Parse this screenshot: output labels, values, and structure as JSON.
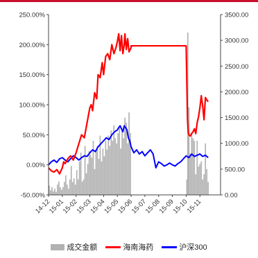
{
  "chart_data": {
    "type": "line",
    "title": "",
    "xlabel": "",
    "ylabel_left": "",
    "ylabel_right": "",
    "left_axis": {
      "ticks": [
        "250.00%",
        "200.00%",
        "150.00%",
        "100.00%",
        "50.00%",
        "0.00%",
        "-50.00%"
      ],
      "min": -50,
      "max": 250,
      "step": 50,
      "unit": "%"
    },
    "right_axis": {
      "ticks": [
        "3500.00",
        "3000.00",
        "2500.00",
        "2000.00",
        "1500.00",
        "1000.00",
        "500.00",
        "0.00"
      ],
      "min": 0,
      "max": 3500,
      "step": 500
    },
    "x_axis": {
      "min": 0,
      "max": 12.5,
      "ticks": [
        {
          "label": "14-12",
          "x": 0
        },
        {
          "label": "15-01",
          "x": 1
        },
        {
          "label": "15-02",
          "x": 2
        },
        {
          "label": "15-03",
          "x": 3
        },
        {
          "label": "15-04",
          "x": 4
        },
        {
          "label": "15-05",
          "x": 5
        },
        {
          "label": "15-06",
          "x": 6
        },
        {
          "label": "15-07",
          "x": 7
        },
        {
          "label": "15-08",
          "x": 8
        },
        {
          "label": "15-09",
          "x": 9
        },
        {
          "label": "15-10",
          "x": 10
        },
        {
          "label": "15-11",
          "x": 11
        }
      ]
    },
    "grid": false,
    "legend_position": "bottom",
    "series": [
      {
        "name": "成交金额",
        "type": "bar",
        "axis": "right",
        "color": "#b2b2b2",
        "x": [
          0.05,
          0.15,
          0.25,
          0.35,
          0.45,
          0.55,
          0.65,
          0.75,
          0.85,
          0.95,
          1.05,
          1.15,
          1.25,
          1.35,
          1.45,
          1.55,
          1.65,
          1.75,
          1.85,
          1.95,
          2.05,
          2.15,
          2.25,
          2.35,
          2.45,
          2.55,
          2.65,
          2.75,
          2.85,
          2.95,
          3.05,
          3.15,
          3.25,
          3.35,
          3.45,
          3.55,
          3.65,
          3.75,
          3.85,
          3.95,
          4.05,
          4.15,
          4.25,
          4.35,
          4.45,
          4.55,
          4.65,
          4.75,
          4.85,
          4.95,
          5.05,
          5.15,
          5.25,
          5.35,
          5.45,
          5.55,
          5.65,
          5.75,
          5.85,
          5.95,
          10.05,
          10.12,
          10.2,
          10.3,
          10.4,
          10.5,
          10.6,
          10.7,
          10.8,
          10.9,
          11.0,
          11.1,
          11.2,
          11.3,
          11.4,
          11.5,
          11.6
        ],
        "values": [
          180,
          90,
          150,
          70,
          120,
          60,
          200,
          260,
          150,
          100,
          150,
          250,
          380,
          200,
          120,
          300,
          560,
          250,
          320,
          200,
          480,
          300,
          650,
          820,
          260,
          300,
          950,
          420,
          600,
          850,
          780,
          720,
          1050,
          500,
          850,
          950,
          700,
          1150,
          650,
          900,
          750,
          1050,
          880,
          1150,
          950,
          1250,
          1050,
          1350,
          1100,
          1000,
          1200,
          1300,
          900,
          1250,
          1100,
          1500,
          1400,
          1000,
          1600,
          1200,
          300,
          3150,
          1700,
          800,
          1200,
          1100,
          1050,
          400,
          1050,
          550,
          600,
          650,
          300,
          400,
          1000,
          500,
          250
        ]
      },
      {
        "name": "海南海药",
        "type": "line",
        "axis": "left",
        "color": "#ff0000",
        "x": [
          0,
          0.2,
          0.4,
          0.6,
          0.8,
          1.0,
          1.1,
          1.2,
          1.4,
          1.6,
          1.8,
          2.0,
          2.2,
          2.4,
          2.6,
          2.8,
          3.0,
          3.1,
          3.2,
          3.35,
          3.5,
          3.6,
          3.75,
          3.9,
          4.0,
          4.15,
          4.3,
          4.45,
          4.6,
          4.75,
          4.9,
          5.0,
          5.1,
          5.2,
          5.3,
          5.4,
          5.5,
          5.55,
          5.65,
          5.75,
          5.85,
          6.0,
          6.0,
          7.0,
          8.0,
          9.0,
          10.0,
          10.1,
          10.15,
          10.2,
          10.3,
          10.4,
          10.5,
          10.6,
          10.7,
          10.8,
          10.9,
          11.0,
          11.1,
          11.2,
          11.3,
          11.4,
          11.5,
          11.6
        ],
        "values": [
          -5,
          -10,
          -12,
          -8,
          -15,
          -5,
          5,
          2,
          10,
          15,
          8,
          20,
          35,
          50,
          45,
          70,
          95,
          100,
          90,
          120,
          110,
          150,
          145,
          170,
          150,
          180,
          185,
          175,
          200,
          185,
          195,
          205,
          218,
          190,
          215,
          185,
          200,
          218,
          192,
          210,
          188,
          195,
          198,
          198,
          198,
          198,
          198,
          75,
          55,
          50,
          48,
          52,
          55,
          60,
          52,
          70,
          80,
          95,
          115,
          98,
          75,
          112,
          108,
          105
        ]
      },
      {
        "name": "沪深300",
        "type": "line",
        "axis": "left",
        "color": "#0000ff",
        "x": [
          0,
          0.2,
          0.4,
          0.6,
          0.8,
          1.0,
          1.2,
          1.4,
          1.6,
          1.8,
          2.0,
          2.2,
          2.4,
          2.6,
          2.8,
          3.0,
          3.2,
          3.4,
          3.6,
          3.8,
          4.0,
          4.2,
          4.4,
          4.6,
          4.8,
          5.0,
          5.1,
          5.2,
          5.3,
          5.4,
          5.5,
          5.6,
          5.7,
          5.8,
          5.9,
          6.0,
          6.2,
          6.4,
          6.6,
          6.8,
          7.0,
          7.2,
          7.4,
          7.6,
          7.8,
          8.0,
          8.2,
          8.4,
          8.6,
          8.8,
          9.0,
          9.2,
          9.4,
          9.6,
          9.8,
          10.0,
          10.2,
          10.4,
          10.6,
          10.8,
          11.0,
          11.2,
          11.4,
          11.6
        ],
        "values": [
          0,
          5,
          8,
          4,
          10,
          12,
          8,
          5,
          10,
          15,
          12,
          8,
          12,
          15,
          14,
          20,
          25,
          22,
          30,
          35,
          40,
          45,
          42,
          50,
          55,
          58,
          62,
          65,
          60,
          55,
          65,
          62,
          58,
          45,
          40,
          30,
          20,
          25,
          18,
          22,
          15,
          20,
          25,
          18,
          -5,
          5,
          2,
          -2,
          0,
          3,
          0,
          -2,
          2,
          5,
          10,
          15,
          12,
          18,
          14,
          16,
          18,
          14,
          16,
          12
        ]
      }
    ]
  }
}
